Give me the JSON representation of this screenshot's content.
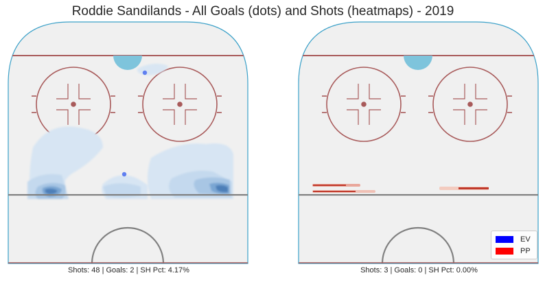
{
  "title": "Roddie Sandilands - All Goals (dots) and Shots (heatmaps) - 2019",
  "colors": {
    "ev": "#0000ff",
    "pp": "#ff0000",
    "rink_board": "#3aa0c8",
    "rink_ice": "#f0f0f0",
    "red_line": "#a85a5a",
    "crease": "#7ec4dc",
    "blue_line": "#808080"
  },
  "legend": [
    {
      "label": "EV",
      "color": "#0000ff"
    },
    {
      "label": "PP",
      "color": "#ff0000"
    }
  ],
  "chart_data": [
    {
      "type": "heatmap",
      "panel": "left",
      "strength": "EV",
      "caption": "Shots: 48 | Goals: 2 | SH Pct: 4.17%",
      "stats": {
        "shots": 48,
        "goals": 2,
        "sh_pct": 4.17
      },
      "goals": 2
    },
    {
      "type": "heatmap",
      "panel": "right",
      "strength": "PP",
      "caption": "Shots: 3 | Goals: 0 | SH Pct: 0.00%",
      "stats": {
        "shots": 3,
        "goals": 0,
        "sh_pct": 0.0
      },
      "goals": 0
    }
  ]
}
